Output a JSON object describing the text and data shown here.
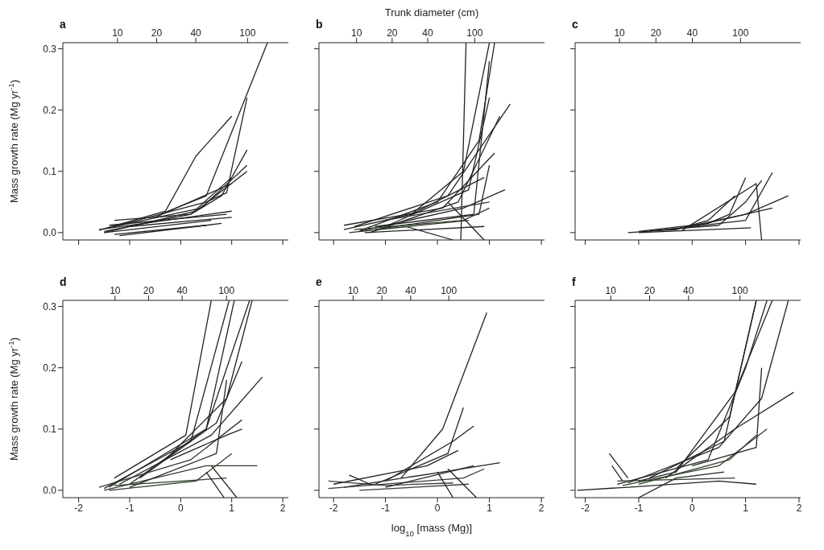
{
  "chart_data": [
    {
      "type": "line",
      "title": "a",
      "ylabel": "Mass growth rate (Mg yr$^{-1}$)",
      "tick_labels": "y",
      "xlim": [
        -2.31,
        2.11
      ],
      "xticks": [
        -2,
        -1,
        0,
        1,
        2
      ],
      "ylim": [
        -0.012,
        0.31
      ],
      "yticks": [
        {
          "value": 0,
          "label": "0.0"
        },
        {
          "value": 0.1,
          "label": "0.1"
        },
        {
          "value": 0.2,
          "label": "0.2"
        },
        {
          "value": 0.3,
          "label": "0.3"
        }
      ],
      "x2lim": [
        3.8,
        206
      ],
      "x2ticks": [
        10,
        20,
        40,
        100
      ],
      "log": "x2",
      "series": [
        {
          "color": "#232323",
          "x": [
            -1.6,
            -0.3,
            0.3,
            1
          ],
          "values": [
            0.004,
            0.035,
            0.125,
            0.19
          ]
        },
        {
          "color": "#232323",
          "x": [
            -0.4,
            0.5,
            1.7
          ],
          "values": [
            0.03,
            0.06,
            0.31
          ]
        },
        {
          "color": "#232323",
          "x": [
            -1.5,
            0.2,
            0.8,
            1.3
          ],
          "values": [
            0.002,
            0.03,
            0.06,
            0.135
          ]
        },
        {
          "color": "#232323",
          "x": [
            -1.4,
            0.5,
            0.9,
            1.3
          ],
          "values": [
            0.008,
            0.05,
            0.065,
            0.22
          ]
        },
        {
          "color": "#232323",
          "x": [
            -1.3,
            0.4,
            1.3
          ],
          "values": [
            0.01,
            0.04,
            0.11
          ]
        },
        {
          "color": "#232323",
          "x": [
            -1.5,
            0.3,
            1.3
          ],
          "values": [
            0,
            0.035,
            0.1
          ]
        },
        {
          "color": "#232323",
          "x": [
            -1.3,
            0.2,
            1
          ],
          "values": [
            0.02,
            0.03,
            0.09
          ]
        },
        {
          "color": "#232323",
          "x": [
            -1.6,
            1
          ],
          "values": [
            0.005,
            0.035
          ]
        },
        {
          "color": "#232323",
          "x": [
            -1.2,
            0.8
          ],
          "values": [
            -0.005,
            0.015
          ]
        },
        {
          "color": "#232323",
          "x": [
            -1.4,
            0.9
          ],
          "values": [
            0.012,
            0.03
          ]
        },
        {
          "color": "#232323",
          "x": [
            -1.5,
            0.6
          ],
          "values": [
            0,
            0.02
          ]
        },
        {
          "color": "#232323",
          "x": [
            -1,
            1
          ],
          "values": [
            0.01,
            0.025
          ]
        },
        {
          "color": "#232323",
          "x": [
            -1.3,
            0.5
          ],
          "values": [
            -0.003,
            0.012
          ]
        },
        {
          "color": "#232323",
          "x": [
            -0.5,
            1
          ],
          "values": [
            0.025,
            0.08
          ]
        }
      ]
    },
    {
      "type": "line",
      "title": "b",
      "x2label": "Trunk diameter (cm)",
      "tick_labels": false,
      "xlim": [
        -2.28,
        2.06
      ],
      "xticks": [
        -2,
        -1,
        0,
        1,
        2
      ],
      "ylim": [
        -0.012,
        0.31
      ],
      "yticks": [
        0,
        0.1,
        0.2,
        0.3
      ],
      "x2lim": [
        4.8,
        390
      ],
      "x2ticks": [
        10,
        20,
        40,
        100
      ],
      "log": "x2",
      "series": [
        {
          "color": "#232323",
          "x": [
            0.45,
            0.55
          ],
          "values": [
            -0.012,
            0.31
          ]
        },
        {
          "color": "#232323",
          "x": [
            -1.8,
            -0.5,
            0.5,
            1
          ],
          "values": [
            0.005,
            0.03,
            0.1,
            0.31
          ]
        },
        {
          "color": "#232323",
          "x": [
            -1.5,
            0,
            0.8,
            1.1
          ],
          "values": [
            0.003,
            0.05,
            0.15,
            0.31
          ]
        },
        {
          "color": "#232323",
          "x": [
            -1.6,
            0.2,
            1.4
          ],
          "values": [
            0.01,
            0.06,
            0.21
          ]
        },
        {
          "color": "#232323",
          "x": [
            -1.3,
            0.4,
            1.2
          ],
          "values": [
            0,
            0.05,
            0.19
          ]
        },
        {
          "color": "#232323",
          "x": [
            -1,
            0.6,
            1
          ],
          "values": [
            0.01,
            0.07,
            0.22
          ]
        },
        {
          "color": "#232323",
          "x": [
            -1.8,
            0.1,
            1.1
          ],
          "values": [
            0.012,
            0.04,
            0.13
          ]
        },
        {
          "color": "#232323",
          "x": [
            -1.5,
            0.5,
            1.3
          ],
          "values": [
            0.002,
            0.04,
            0.07
          ]
        },
        {
          "color": "#232323",
          "x": [
            -1.2,
            0.8,
            1
          ],
          "values": [
            0.005,
            0.03,
            0.11
          ]
        },
        {
          "color": "#2e3b2a",
          "x": [
            -1.7,
            0.6
          ],
          "values": [
            0,
            0.02
          ]
        },
        {
          "color": "#2e3b2a",
          "x": [
            -1,
            1
          ],
          "values": [
            0.02,
            0.05
          ]
        },
        {
          "color": "#232323",
          "x": [
            -1.4,
            0.9
          ],
          "values": [
            0,
            0.01
          ]
        },
        {
          "color": "#232323",
          "x": [
            -0.5,
            0.9
          ],
          "values": [
            0.03,
            0.09
          ]
        },
        {
          "color": "#232323",
          "x": [
            -0.6,
            0.3
          ],
          "values": [
            0.01,
            -0.012
          ]
        },
        {
          "color": "#232323",
          "x": [
            0.2,
            0.9
          ],
          "values": [
            0.05,
            -0.012
          ]
        },
        {
          "color": "#232323",
          "x": [
            -1.2,
            0.7,
            1
          ],
          "values": [
            0.01,
            0.03,
            0.28
          ]
        },
        {
          "color": "#2e3b2a",
          "x": [
            -1.6,
            0.5,
            1
          ],
          "values": [
            0.005,
            0.02,
            0.04
          ]
        }
      ]
    },
    {
      "type": "line",
      "title": "c",
      "tick_labels": false,
      "xlim": [
        -2.19,
        2.03
      ],
      "xticks": [
        -2,
        -1,
        0,
        1,
        2
      ],
      "ylim": [
        -0.012,
        0.31
      ],
      "yticks": [
        0,
        0.1,
        0.2,
        0.3
      ],
      "x2lim": [
        4.3,
        314
      ],
      "x2ticks": [
        10,
        20,
        40,
        100
      ],
      "log": "x2",
      "series": [
        {
          "color": "#232323",
          "x": [
            -1.2,
            -0.3,
            0.3,
            0.8
          ],
          "values": [
            0,
            0.005,
            0.02,
            0.06
          ]
        },
        {
          "color": "#232323",
          "x": [
            -1,
            0.3,
            0.7,
            1
          ],
          "values": [
            0.002,
            0.015,
            0.03,
            0.09
          ]
        },
        {
          "color": "#232323",
          "x": [
            -0.8,
            0.5,
            1,
            1.3
          ],
          "values": [
            0.003,
            0.012,
            0.05,
            0.085
          ]
        },
        {
          "color": "#232323",
          "x": [
            -0.5,
            1,
            1.5
          ],
          "values": [
            0.005,
            0.02,
            0.098
          ]
        },
        {
          "color": "#232323",
          "x": [
            -0.4,
            1,
            1.8
          ],
          "values": [
            0.004,
            0.03,
            0.06
          ]
        },
        {
          "color": "#232323",
          "x": [
            -0.2,
            1.2,
            1.3
          ],
          "values": [
            0.003,
            0.08,
            -0.012
          ]
        },
        {
          "color": "#232323",
          "x": [
            -1,
            1.1
          ],
          "values": [
            0,
            0.008
          ]
        },
        {
          "color": "#232323",
          "x": [
            0,
            1.5
          ],
          "values": [
            0.01,
            0.04
          ]
        }
      ]
    },
    {
      "type": "line",
      "title": "d",
      "ylabel": "Mass growth rate (Mg yr$^{-1}$)",
      "xlim": [
        -2.31,
        2.11
      ],
      "xticks": [
        -2,
        -1,
        0,
        1,
        2
      ],
      "ylim": [
        -0.012,
        0.31
      ],
      "yticks": [
        {
          "value": 0,
          "label": "0.0"
        },
        {
          "value": 0.1,
          "label": "0.1"
        },
        {
          "value": 0.2,
          "label": "0.2"
        },
        {
          "value": 0.3,
          "label": "0.3"
        }
      ],
      "x2lim": [
        3.4,
        359
      ],
      "x2ticks": [
        10,
        20,
        40,
        100
      ],
      "log": "x2",
      "series": [
        {
          "color": "#232323",
          "x": [
            -1.3,
            0.1,
            0.6
          ],
          "values": [
            0.02,
            0.09,
            0.31
          ]
        },
        {
          "color": "#232323",
          "x": [
            -1.5,
            0.2,
            0.95
          ],
          "values": [
            0.003,
            0.08,
            0.31
          ]
        },
        {
          "color": "#232323",
          "x": [
            -1.4,
            0.5,
            1.05
          ],
          "values": [
            0.005,
            0.1,
            0.31
          ]
        },
        {
          "color": "#232323",
          "x": [
            -0.3,
            0.9,
            1.4
          ],
          "values": [
            0.05,
            0.15,
            0.31
          ]
        },
        {
          "color": "#232323",
          "x": [
            -1,
            0.5,
            1.35
          ],
          "values": [
            0.01,
            0.1,
            0.31
          ]
        },
        {
          "color": "#232323",
          "x": [
            -1.2,
            0.6,
            1.6
          ],
          "values": [
            0.01,
            0.09,
            0.185
          ]
        },
        {
          "color": "#232323",
          "x": [
            -0.8,
            0.7,
            1.2
          ],
          "values": [
            0.02,
            0.11,
            0.21
          ]
        },
        {
          "color": "#2e3b2a",
          "x": [
            -1.6,
            0.2,
            1.2
          ],
          "values": [
            0.005,
            0.05,
            0.115
          ]
        },
        {
          "color": "#2e3b2a",
          "x": [
            -1.5,
            0.5,
            1.5
          ],
          "values": [
            0,
            0.04,
            0.04
          ]
        },
        {
          "color": "#2e3b2a",
          "x": [
            -1.3,
            0.9
          ],
          "values": [
            0.008,
            0.02
          ]
        },
        {
          "color": "#232323",
          "x": [
            -0.2,
            0.9,
            1.2
          ],
          "values": [
            0.05,
            0.09,
            0.1
          ]
        },
        {
          "color": "#232323",
          "x": [
            0.6,
            1.1
          ],
          "values": [
            0.04,
            -0.012
          ]
        },
        {
          "color": "#232323",
          "x": [
            0.5,
            0.85
          ],
          "values": [
            0.03,
            -0.012
          ]
        },
        {
          "color": "#2e3b2a",
          "x": [
            -1.4,
            0.3,
            1
          ],
          "values": [
            0,
            0.015,
            0.06
          ]
        },
        {
          "color": "#232323",
          "x": [
            -1,
            0.7,
            0.9
          ],
          "values": [
            0.005,
            0.06,
            0.18
          ]
        }
      ]
    },
    {
      "type": "line",
      "title": "e",
      "xlabel": "log$_{10}$ [mass (Mg)]",
      "tick_labels": "x",
      "xlim": [
        -2.28,
        2.06
      ],
      "xticks": [
        -2,
        -1,
        0,
        1,
        2
      ],
      "ylim": [
        -0.012,
        0.31
      ],
      "yticks": [
        0,
        0.1,
        0.2,
        0.3
      ],
      "x2lim": [
        4.4,
        1000
      ],
      "x2ticks": [
        10,
        20,
        40,
        100
      ],
      "log": "x2",
      "series": [
        {
          "color": "#232323",
          "x": [
            -0.7,
            0.1,
            0.95
          ],
          "values": [
            0.02,
            0.1,
            0.29
          ]
        },
        {
          "color": "#232323",
          "x": [
            -1.2,
            0.2,
            0.5
          ],
          "values": [
            0.01,
            0.06,
            0.135
          ]
        },
        {
          "color": "#232323",
          "x": [
            -1,
            0.3,
            0.7
          ],
          "values": [
            0.015,
            0.08,
            0.105
          ]
        },
        {
          "color": "#232323",
          "x": [
            -2,
            -0.2,
            0.4
          ],
          "values": [
            0.01,
            0.04,
            0.065
          ]
        },
        {
          "color": "#232323",
          "x": [
            -1.8,
            0.1,
            1.2
          ],
          "values": [
            0.005,
            0.03,
            0.045
          ]
        },
        {
          "color": "#3a3a3a",
          "x": [
            -2.1,
            0.5,
            0.9
          ],
          "values": [
            0.003,
            0.02,
            0.035
          ]
        },
        {
          "color": "#3a3a3a",
          "x": [
            -1.5,
            0.6
          ],
          "values": [
            0,
            0.01
          ]
        },
        {
          "color": "#3a3a3a",
          "x": [
            -2.1,
            -1,
            0.3
          ],
          "values": [
            0.015,
            0.008,
            0.012
          ]
        },
        {
          "color": "#232323",
          "x": [
            -1.7,
            -1.3
          ],
          "values": [
            0.025,
            0.01
          ]
        },
        {
          "color": "#232323",
          "x": [
            0,
            0.3
          ],
          "values": [
            0.03,
            -0.012
          ]
        },
        {
          "color": "#232323",
          "x": [
            0.2,
            0.75
          ],
          "values": [
            0.035,
            -0.012
          ]
        },
        {
          "color": "#232323",
          "x": [
            -1,
            0.7
          ],
          "values": [
            0.005,
            0.04
          ]
        }
      ]
    },
    {
      "type": "line",
      "title": "f",
      "tick_labels": "x",
      "xlim": [
        -2.19,
        2.03
      ],
      "xticks": [
        -2,
        -1,
        0,
        1,
        2
      ],
      "ylim": [
        -0.012,
        0.31
      ],
      "yticks": [
        0,
        0.1,
        0.2,
        0.3
      ],
      "x2lim": [
        5.3,
        295
      ],
      "x2ticks": [
        10,
        20,
        40,
        100
      ],
      "log": "x2",
      "series": [
        {
          "color": "#232323",
          "x": [
            -1,
            -0.3,
            0.8,
            1.5
          ],
          "values": [
            0.015,
            0.03,
            0.16,
            0.31
          ]
        },
        {
          "color": "#232323",
          "x": [
            -0.3,
            0.7,
            1.2
          ],
          "values": [
            0.035,
            0.12,
            0.31
          ]
        },
        {
          "color": "#232323",
          "x": [
            -1.4,
            0.3,
            1,
            1.4
          ],
          "values": [
            0.01,
            0.05,
            0.2,
            0.31
          ]
        },
        {
          "color": "#232323",
          "x": [
            -0.8,
            0.6,
            1.2
          ],
          "values": [
            0.02,
            0.08,
            0.31
          ]
        },
        {
          "color": "#232323",
          "x": [
            -1.2,
            0.5,
            1.3,
            1.8
          ],
          "values": [
            0.012,
            0.07,
            0.15,
            0.31
          ]
        },
        {
          "color": "#232323",
          "x": [
            -0.5,
            0.8,
            1.9
          ],
          "values": [
            0.02,
            0.1,
            0.16
          ]
        },
        {
          "color": "#2e3b2a",
          "x": [
            -1.3,
            0.5,
            1.4
          ],
          "values": [
            0.008,
            0.04,
            0.1
          ]
        },
        {
          "color": "#2e3b2a",
          "x": [
            -1,
            0.7,
            1.2
          ],
          "values": [
            0.01,
            0.05,
            0.09
          ]
        },
        {
          "color": "#232323",
          "x": [
            -2.15,
            -1.2,
            0.5,
            1.2
          ],
          "values": [
            0,
            0.005,
            0.015,
            0.01
          ]
        },
        {
          "color": "#232323",
          "x": [
            -1.55,
            -1.2
          ],
          "values": [
            0.06,
            0.02
          ]
        },
        {
          "color": "#232323",
          "x": [
            -1.5,
            -1.3
          ],
          "values": [
            0.04,
            0.015
          ]
        },
        {
          "color": "#232323",
          "x": [
            -1,
            -0.3,
            0.6
          ],
          "values": [
            -0.012,
            0.02,
            0.03
          ]
        },
        {
          "color": "#2e3b2a",
          "x": [
            -1.4,
            0.8
          ],
          "values": [
            0.015,
            0.02
          ]
        },
        {
          "color": "#232323",
          "x": [
            0,
            1.2,
            1.3
          ],
          "values": [
            0.04,
            0.07,
            0.2
          ]
        }
      ]
    }
  ]
}
